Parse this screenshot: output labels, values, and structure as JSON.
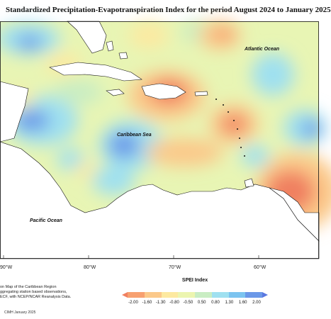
{
  "title": "Standardized Precipitation-Evapotranspiration Index for the period August 2024 to January 2025",
  "ocean_labels": {
    "atlantic": "Atlantic Ocean",
    "caribbean": "Caribbean Sea",
    "pacific": "Pacific Ocean"
  },
  "longitude_labels": [
    "80°W",
    "70°W",
    "60°W"
  ],
  "edge_longitude_label": "90°W",
  "notes": [
    "on Map of the Caribbean Region",
    "ggregating station based observations,",
    "ECF, with NCEP/NCAR Reanalysis Data."
  ],
  "credit": "CIMH January 2025",
  "legend": {
    "title": "SPEI Index",
    "ticks": [
      "-2.00",
      "-1.60",
      "-1.30",
      "-0.80",
      "-0.50",
      "0.50",
      "0.80",
      "1.30",
      "1.60",
      "2.00"
    ],
    "colors": [
      "#f08060",
      "#f7a070",
      "#fbc98a",
      "#fde9a0",
      "#ecf5b0",
      "#c9edc3",
      "#9fe0f0",
      "#7cc4f0",
      "#6b98e8",
      "#5a78e0"
    ]
  }
}
